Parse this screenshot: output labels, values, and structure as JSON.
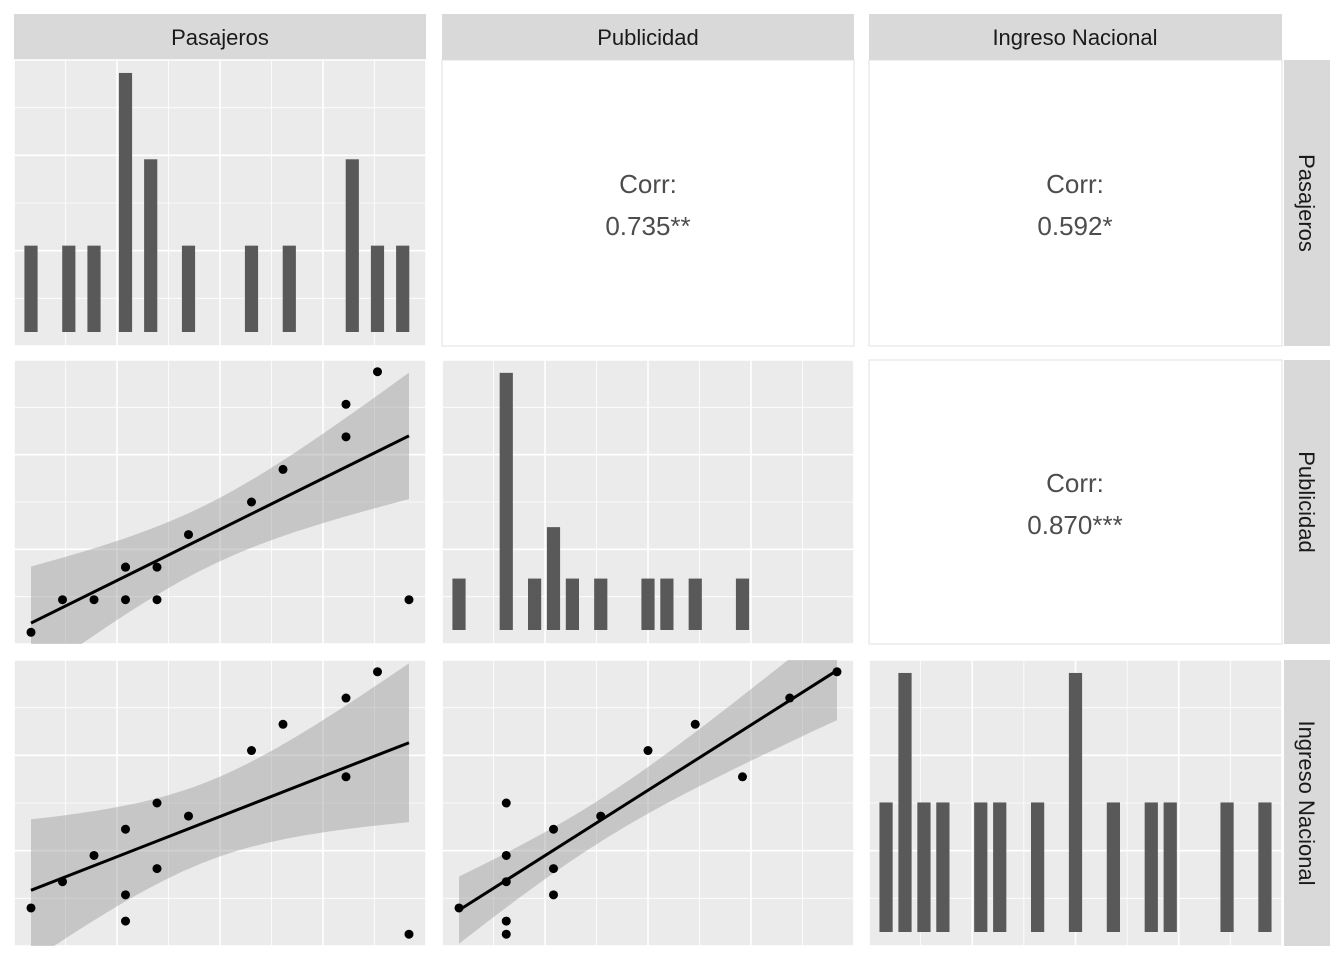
{
  "variables": [
    "Pasajeros",
    "Publicidad",
    "Ingreso Nacional"
  ],
  "colors": {
    "panel_bg": "#ebebeb",
    "grid": "#ffffff",
    "strip_bg": "#d9d9d9",
    "bar": "#595959",
    "point": "#000000",
    "line": "#000000",
    "ribbon": "#999999",
    "corr_text": "#4d4d4d"
  },
  "chart_data": {
    "type": "scatter",
    "variables": [
      "Pasajeros",
      "Publicidad",
      "Ingreso Nacional"
    ],
    "observations": {
      "Pasajeros": [
        0,
        1,
        2,
        3,
        3,
        3,
        4,
        4,
        5,
        7,
        8,
        10,
        10,
        11,
        12
      ],
      "Publicidad": [
        0,
        1,
        1,
        2,
        1,
        2,
        1,
        2,
        3,
        4,
        5,
        6,
        7,
        8,
        1
      ],
      "Ingreso Nacional": [
        1,
        2,
        3,
        4,
        0.5,
        1.5,
        5,
        2.5,
        4.5,
        7,
        8,
        6,
        9,
        10,
        0
      ]
    },
    "correlations": [
      {
        "x": "Publicidad",
        "y": "Pasajeros",
        "title": "Corr:",
        "value": "0.735**"
      },
      {
        "x": "Ingreso Nacional",
        "y": "Pasajeros",
        "title": "Corr:",
        "value": "0.592*"
      },
      {
        "x": "Ingreso Nacional",
        "y": "Publicidad",
        "title": "Corr:",
        "value": "0.870***"
      }
    ],
    "histograms": [
      {
        "variable": "Pasajeros",
        "bins": [
          [
            0,
            1
          ],
          [
            1.2,
            1
          ],
          [
            2,
            1
          ],
          [
            3,
            3
          ],
          [
            3.8,
            2
          ],
          [
            5,
            1
          ],
          [
            7,
            1
          ],
          [
            8.2,
            1
          ],
          [
            10.2,
            2
          ],
          [
            11,
            1
          ],
          [
            11.8,
            1
          ]
        ]
      },
      {
        "variable": "Publicidad",
        "bins": [
          [
            0,
            1
          ],
          [
            1,
            5
          ],
          [
            1.6,
            1
          ],
          [
            2,
            2
          ],
          [
            2.4,
            1
          ],
          [
            3,
            1
          ],
          [
            4,
            1
          ],
          [
            4.4,
            1
          ],
          [
            5,
            1
          ],
          [
            6,
            1
          ]
        ]
      },
      {
        "variable": "Ingreso Nacional",
        "bins": [
          [
            0,
            1
          ],
          [
            0.5,
            2
          ],
          [
            1,
            1
          ],
          [
            1.5,
            1
          ],
          [
            2.5,
            1
          ],
          [
            3,
            1
          ],
          [
            4,
            1
          ],
          [
            5,
            2
          ],
          [
            6,
            1
          ],
          [
            7,
            1
          ],
          [
            7.5,
            1
          ],
          [
            9,
            1
          ],
          [
            10,
            1
          ]
        ]
      }
    ],
    "smoother": "linear fit with confidence band",
    "grid": true
  }
}
